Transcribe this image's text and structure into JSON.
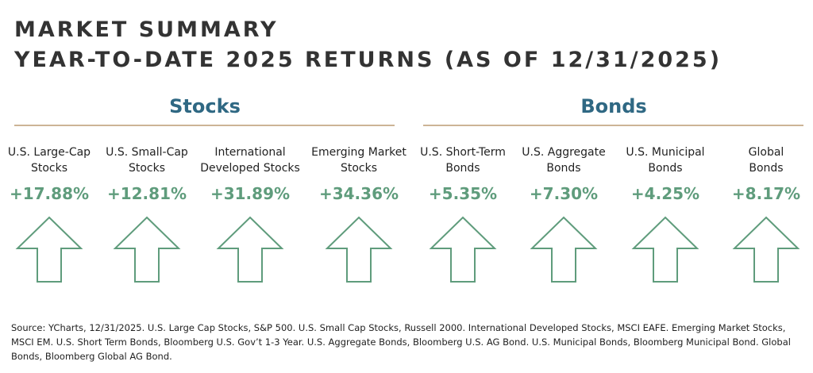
{
  "header": {
    "title_lines": [
      "MARKET SUMMARY",
      "YEAR-TO-DATE 2025 RETURNS (AS OF 12/31/2025)"
    ]
  },
  "groups": [
    {
      "title": "Stocks",
      "items": [
        {
          "label": [
            "U.S. Large-Cap",
            "Stocks"
          ],
          "value": "+17.88%"
        },
        {
          "label": [
            "U.S. Small-Cap",
            "Stocks"
          ],
          "value": "+12.81%"
        },
        {
          "label": [
            "International",
            "Developed Stocks"
          ],
          "value": "+31.89%"
        },
        {
          "label": [
            "Emerging Market",
            "Stocks"
          ],
          "value": "+34.36%"
        }
      ]
    },
    {
      "title": "Bonds",
      "items": [
        {
          "label": [
            "U.S. Short-Term",
            "Bonds"
          ],
          "value": "+5.35%"
        },
        {
          "label": [
            "U.S. Aggregate",
            "Bonds"
          ],
          "value": "+7.30%"
        },
        {
          "label": [
            "U.S. Municipal",
            "Bonds"
          ],
          "value": "+4.25%"
        },
        {
          "label": [
            "Global",
            "Bonds"
          ],
          "value": "+8.17%"
        }
      ]
    }
  ],
  "footer": {
    "source": "Source: YCharts, 12/31/2025. U.S. Large Cap Stocks, S&P 500. U.S. Small Cap Stocks, Russell 2000. International Developed Stocks, MSCI EAFE. Emerging Market Stocks, MSCI EM. U.S. Short Term Bonds, Bloomberg U.S. Gov’t 1-3 Year. U.S. Aggregate Bonds, Bloomberg U.S. AG Bond. U.S. Municipal Bonds, Bloomberg Municipal Bond. Global Bonds, Bloomberg Global AG Bond."
  }
}
